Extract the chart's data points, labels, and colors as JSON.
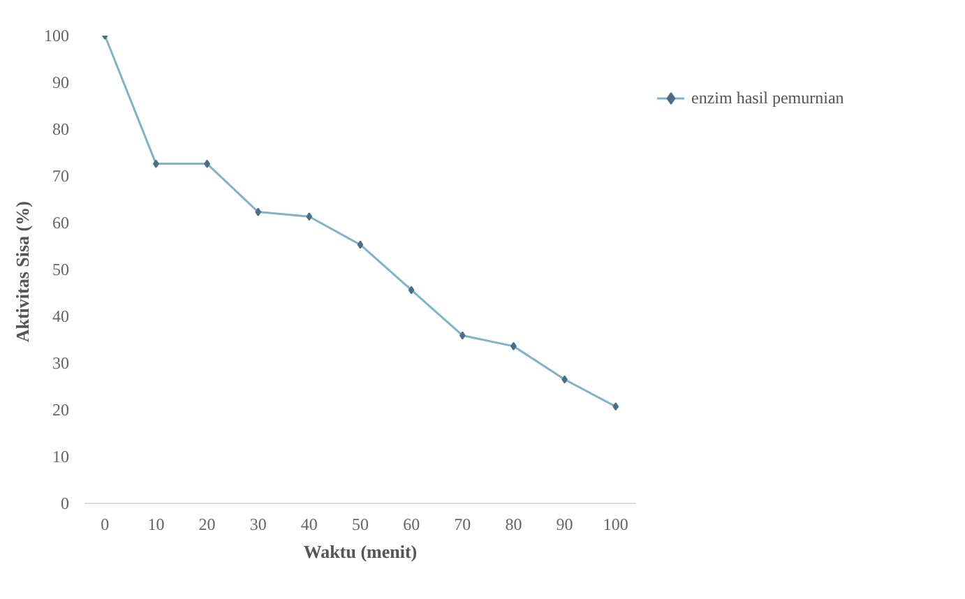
{
  "chart_data": {
    "type": "line",
    "xlabel": "Waktu (menit)",
    "ylabel": "Aktivitas Sisa  (%)",
    "x": [
      0,
      10,
      20,
      30,
      40,
      50,
      60,
      70,
      80,
      90,
      100
    ],
    "series": [
      {
        "name": "enzim hasil pemurnian",
        "color": "#7fb3c8",
        "values": [
          100,
          72.6,
          72.6,
          62.3,
          61.3,
          55.3,
          45.6,
          35.9,
          33.6,
          26.5,
          20.7
        ]
      }
    ],
    "xlim": [
      -4,
      104
    ],
    "xticks": [
      0,
      10,
      20,
      30,
      40,
      50,
      60,
      70,
      80,
      90,
      100
    ],
    "ylim": [
      0,
      100
    ],
    "yticks": [
      0,
      10,
      20,
      30,
      40,
      50,
      60,
      70,
      80,
      90,
      100
    ],
    "grid": false,
    "legend": "right",
    "marker": "diamond",
    "line_style": "solid"
  }
}
